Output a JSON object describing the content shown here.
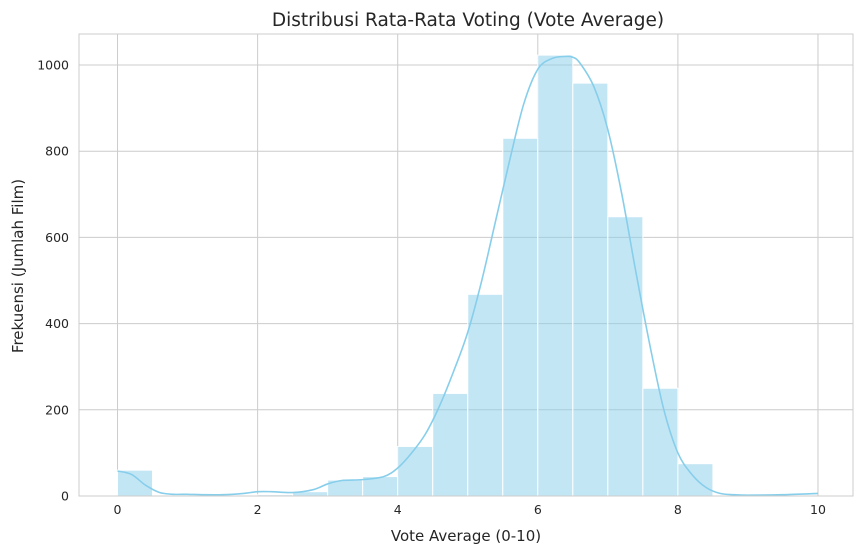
{
  "chart_data": {
    "type": "bar",
    "subtype": "histogram-with-kde",
    "title": "Distribusi Rata-Rata Voting (Vote Average)",
    "xlabel": "Vote Average (0-10)",
    "ylabel": "Frekuensi (Jumlah Film)",
    "xlim": [
      -0.55,
      10.5
    ],
    "ylim": [
      0,
      1072
    ],
    "xticks": [
      0,
      2,
      4,
      6,
      8,
      10
    ],
    "yticks": [
      0,
      200,
      400,
      600,
      800,
      1000
    ],
    "grid": true,
    "bin_width": 0.5,
    "bins": [
      {
        "x0": 0.0,
        "x1": 0.5,
        "count": 60
      },
      {
        "x0": 0.5,
        "x1": 1.0,
        "count": 0
      },
      {
        "x0": 1.0,
        "x1": 1.5,
        "count": 0
      },
      {
        "x0": 1.5,
        "x1": 2.0,
        "count": 0
      },
      {
        "x0": 2.0,
        "x1": 2.5,
        "count": 3
      },
      {
        "x0": 2.5,
        "x1": 3.0,
        "count": 10
      },
      {
        "x0": 3.0,
        "x1": 3.5,
        "count": 37
      },
      {
        "x0": 3.5,
        "x1": 4.0,
        "count": 45
      },
      {
        "x0": 4.0,
        "x1": 4.5,
        "count": 115
      },
      {
        "x0": 4.5,
        "x1": 5.0,
        "count": 238
      },
      {
        "x0": 5.0,
        "x1": 5.5,
        "count": 468
      },
      {
        "x0": 5.5,
        "x1": 6.0,
        "count": 830
      },
      {
        "x0": 6.0,
        "x1": 6.5,
        "count": 1023
      },
      {
        "x0": 6.5,
        "x1": 7.0,
        "count": 958
      },
      {
        "x0": 7.0,
        "x1": 7.5,
        "count": 648
      },
      {
        "x0": 7.5,
        "x1": 8.0,
        "count": 250
      },
      {
        "x0": 8.0,
        "x1": 8.5,
        "count": 75
      },
      {
        "x0": 8.5,
        "x1": 9.0,
        "count": 0
      },
      {
        "x0": 9.0,
        "x1": 9.5,
        "count": 0
      },
      {
        "x0": 9.5,
        "x1": 10.0,
        "count": 0
      }
    ],
    "kde": {
      "x": [
        0.0,
        0.2,
        0.4,
        0.6,
        0.8,
        1.0,
        1.2,
        1.5,
        1.8,
        2.0,
        2.2,
        2.5,
        2.8,
        3.0,
        3.2,
        3.5,
        3.8,
        4.0,
        4.2,
        4.4,
        4.6,
        4.8,
        5.0,
        5.2,
        5.4,
        5.6,
        5.8,
        6.0,
        6.2,
        6.4,
        6.5,
        6.6,
        6.8,
        7.0,
        7.2,
        7.4,
        7.6,
        7.8,
        8.0,
        8.2,
        8.4,
        8.6,
        8.8,
        9.0,
        9.5,
        10.0
      ],
      "y": [
        58,
        50,
        25,
        8,
        4,
        4,
        3,
        3,
        6,
        10,
        10,
        8,
        15,
        28,
        36,
        38,
        45,
        65,
        100,
        145,
        210,
        290,
        380,
        500,
        640,
        780,
        910,
        990,
        1015,
        1020,
        1018,
        1005,
        950,
        850,
        700,
        520,
        350,
        200,
        100,
        50,
        20,
        6,
        3,
        2,
        3,
        6
      ]
    },
    "colors": {
      "bar_fill": "#87CEEB",
      "bar_opacity": 0.5,
      "bar_edge": "#ffffff",
      "kde_line": "#87CEEB",
      "grid": "#cccccc",
      "frame": "#cccccc"
    }
  }
}
